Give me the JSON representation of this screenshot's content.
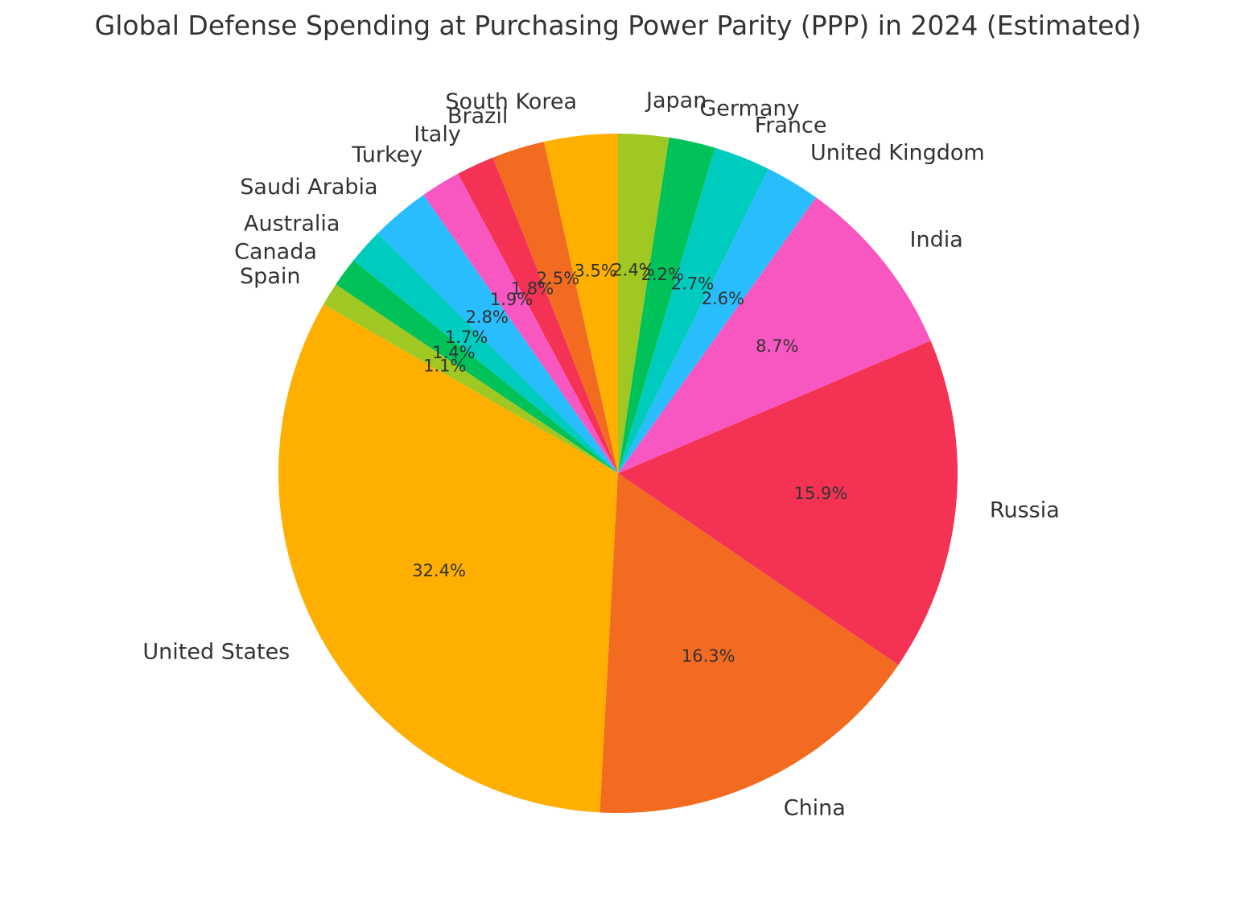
{
  "chart_data": {
    "type": "pie",
    "title": "Global Defense Spending at Purchasing Power Parity (PPP) in 2024 (Estimated)",
    "start_angle_deg": 90,
    "direction": "counterclockwise",
    "slices": [
      {
        "label": "South Korea",
        "value": 3.5,
        "pct_label": "3.5%",
        "color": "#FFAF00"
      },
      {
        "label": "Brazil",
        "value": 2.5,
        "pct_label": "2.5%",
        "color": "#F26B21"
      },
      {
        "label": "Italy",
        "value": 1.8,
        "pct_label": "1.8%",
        "color": "#F43254"
      },
      {
        "label": "Turkey",
        "value": 1.9,
        "pct_label": "1.9%",
        "color": "#F857C1"
      },
      {
        "label": "Saudi Arabia",
        "value": 2.8,
        "pct_label": "2.8%",
        "color": "#29BDFD"
      },
      {
        "label": "Australia",
        "value": 1.7,
        "pct_label": "1.7%",
        "color": "#00CBBF"
      },
      {
        "label": "Canada",
        "value": 1.4,
        "pct_label": "1.4%",
        "color": "#01C159"
      },
      {
        "label": "Spain",
        "value": 1.1,
        "pct_label": "1.1%",
        "color": "#9FC822"
      },
      {
        "label": "United States",
        "value": 32.4,
        "pct_label": "32.4%",
        "color": "#FFAF00"
      },
      {
        "label": "China",
        "value": 16.3,
        "pct_label": "16.3%",
        "color": "#F26B21"
      },
      {
        "label": "Russia",
        "value": 15.9,
        "pct_label": "15.9%",
        "color": "#F43254"
      },
      {
        "label": "India",
        "value": 8.7,
        "pct_label": "8.7%",
        "color": "#F857C1"
      },
      {
        "label": "United Kingdom",
        "value": 2.6,
        "pct_label": "2.6%",
        "color": "#29BDFD"
      },
      {
        "label": "France",
        "value": 2.7,
        "pct_label": "2.7%",
        "color": "#00CBBF"
      },
      {
        "label": "Germany",
        "value": 2.2,
        "pct_label": "2.2%",
        "color": "#01C159"
      },
      {
        "label": "Japan",
        "value": 2.4,
        "pct_label": "2.4%",
        "color": "#9FC822"
      }
    ]
  }
}
